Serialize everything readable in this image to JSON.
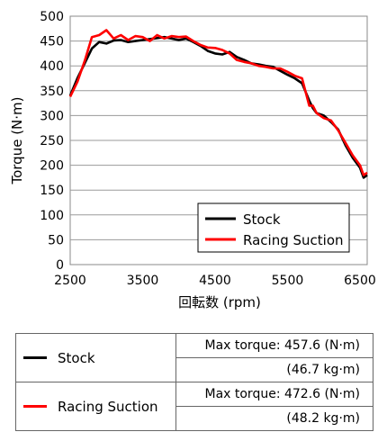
{
  "chart_data": {
    "type": "line",
    "xlabel": "回転数 (rpm)",
    "ylabel": "Torque (N·m)",
    "xlim": [
      2500,
      6600
    ],
    "ylim": [
      0,
      500
    ],
    "xticks": [
      2500,
      3500,
      4500,
      5500,
      6500
    ],
    "yticks": [
      0,
      50,
      100,
      150,
      200,
      250,
      300,
      350,
      400,
      450,
      500
    ],
    "grid": "horizontal",
    "legend_position": "bottom-right",
    "series": [
      {
        "name": "Stock",
        "color": "#000000",
        "x": [
          2500,
          2600,
          2700,
          2800,
          2900,
          3000,
          3100,
          3200,
          3300,
          3400,
          3500,
          3600,
          3700,
          3800,
          3900,
          4000,
          4100,
          4200,
          4300,
          4400,
          4500,
          4600,
          4700,
          4800,
          4900,
          5000,
          5100,
          5200,
          5300,
          5400,
          5500,
          5600,
          5700,
          5800,
          5850,
          5900,
          6000,
          6100,
          6200,
          6300,
          6400,
          6500,
          6550,
          6600
        ],
        "values": [
          340,
          375,
          405,
          435,
          448,
          445,
          451,
          452,
          448,
          450,
          452,
          454,
          456,
          458,
          455,
          452,
          455,
          448,
          440,
          430,
          425,
          423,
          428,
          418,
          412,
          405,
          403,
          400,
          398,
          390,
          382,
          375,
          365,
          330,
          315,
          305,
          300,
          287,
          272,
          240,
          215,
          195,
          175,
          180
        ]
      },
      {
        "name": "Racing Suction",
        "color": "#ff0000",
        "x": [
          2500,
          2600,
          2700,
          2800,
          2900,
          3000,
          3100,
          3200,
          3300,
          3400,
          3500,
          3600,
          3700,
          3800,
          3900,
          4000,
          4100,
          4200,
          4300,
          4400,
          4500,
          4600,
          4700,
          4800,
          4900,
          5000,
          5100,
          5200,
          5300,
          5400,
          5500,
          5600,
          5700,
          5800,
          5850,
          5900,
          6000,
          6100,
          6200,
          6300,
          6400,
          6500,
          6550,
          6600
        ],
        "values": [
          338,
          368,
          410,
          458,
          462,
          472,
          455,
          462,
          452,
          460,
          458,
          450,
          462,
          455,
          460,
          458,
          459,
          450,
          442,
          437,
          436,
          432,
          425,
          412,
          408,
          405,
          400,
          398,
          395,
          395,
          388,
          380,
          375,
          320,
          320,
          305,
          295,
          290,
          270,
          245,
          220,
          200,
          180,
          185
        ]
      }
    ]
  },
  "summary": {
    "rows": [
      {
        "name": "Stock",
        "color": "#000000",
        "max_torque": "Max torque: 457.6 (N·m)",
        "max_torque_kg": "(46.7 kg·m)"
      },
      {
        "name": "Racing Suction",
        "color": "#ff0000",
        "max_torque": "Max torque: 472.6 (N·m)",
        "max_torque_kg": "(48.2 kg·m)"
      }
    ]
  }
}
